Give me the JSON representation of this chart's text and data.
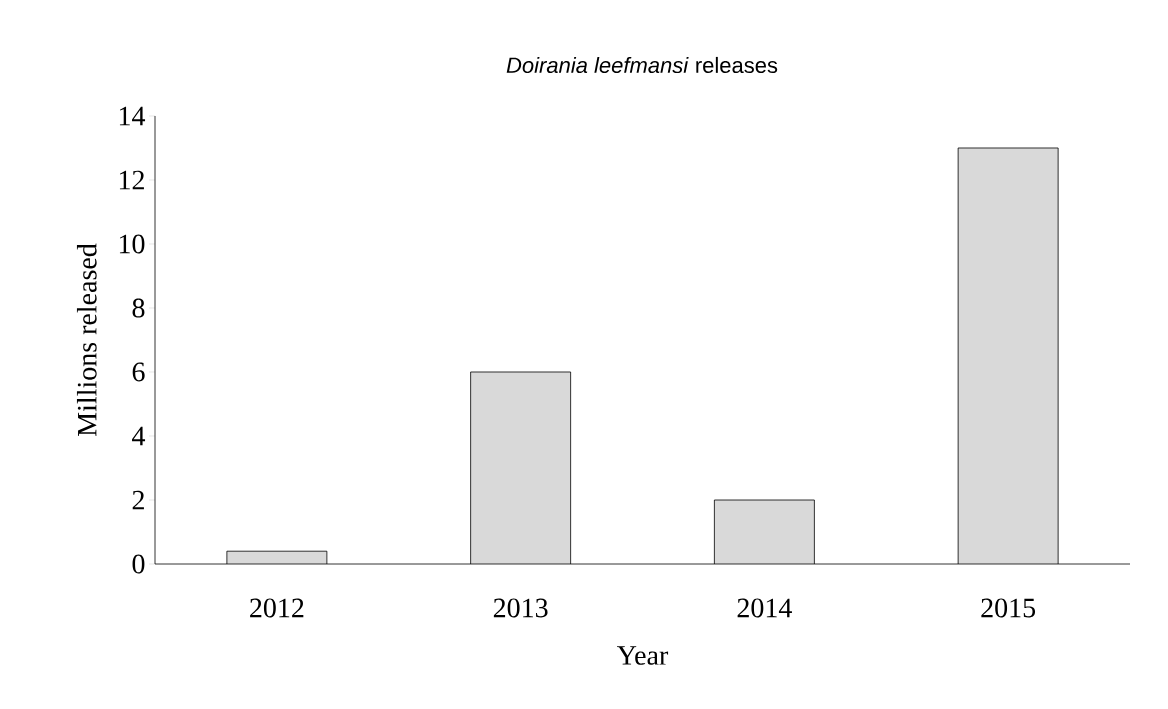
{
  "chart_data": {
    "type": "bar",
    "title": "*Doirania leefmansi* releases",
    "xlabel": "Year",
    "ylabel": "Millions released",
    "categories": [
      "2012",
      "2013",
      "2014",
      "2015"
    ],
    "values": [
      0.4,
      6,
      2,
      13
    ],
    "color": "#d9d9d9",
    "ylim": [
      0,
      14
    ],
    "yticks": [
      0,
      2,
      4,
      6,
      8,
      10,
      12,
      14
    ],
    "grid": false
  }
}
